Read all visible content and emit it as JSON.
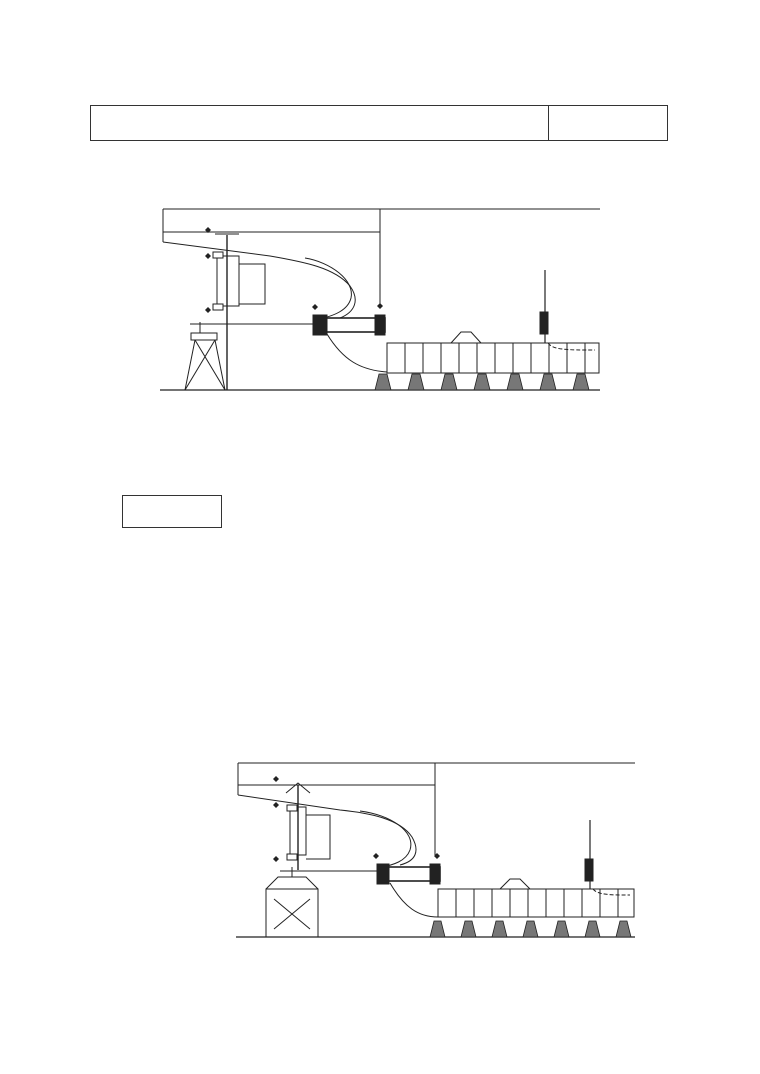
{
  "header": {
    "title": "",
    "code": ""
  },
  "label_box": {
    "text": ""
  },
  "figures": [
    {
      "label": ""
    },
    {
      "label": ""
    }
  ],
  "colors": {
    "line": "#222222",
    "hatch": "#555555"
  }
}
